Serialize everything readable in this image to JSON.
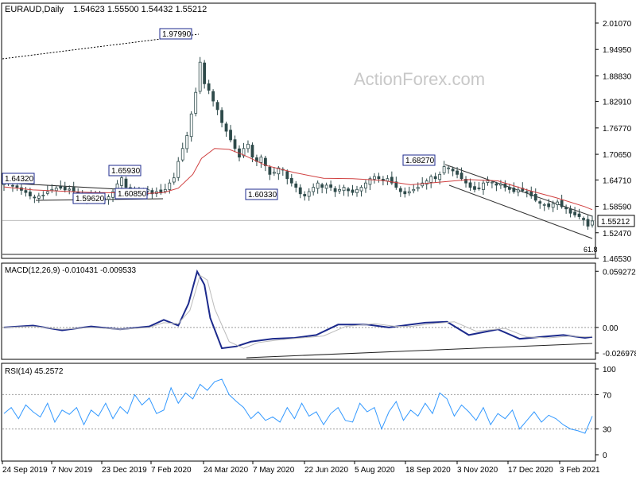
{
  "header": {
    "symbol": "EURAUD,Daily",
    "ohlc": "1.54623 1.55500 1.54432 1.55212"
  },
  "watermark": "ActionForex.com",
  "colors": {
    "candles": "#2e4a4a",
    "sma": "#d04040",
    "macd_line": "#1c2a8c",
    "signal_line": "#bbbbbb",
    "rsi_line": "#3399ff",
    "trendline": "#222222",
    "channel": "#333333",
    "label_border": "#1c2a8c",
    "current_price_box": "#ffffff"
  },
  "chart_data": [
    {
      "type": "candlestick",
      "title": "EURAUD,Daily",
      "subtitle": "1.54623 1.55500 1.54432 1.55212",
      "ylim": [
        1.4653,
        2.0601
      ],
      "y_ticks": [
        "2.01070",
        "1.94950",
        "1.88830",
        "1.82910",
        "1.76770",
        "1.70650",
        "1.64710",
        "1.58590",
        "1.52470",
        "1.46530"
      ],
      "x_ticks": [
        "24 Sep 2019",
        "7 Nov 2019",
        "23 Dec 2019",
        "7 Feb 2020",
        "24 Mar 2020",
        "7 May 2020",
        "22 Jun 2020",
        "5 Aug 2020",
        "18 Sep 2020",
        "3 Nov 2020",
        "17 Dec 2020",
        "3 Feb 2021"
      ],
      "current_price": "1.55212",
      "price_labels": [
        "1.97990",
        "1.65930",
        "1.60850",
        "1.59620",
        "1.60330",
        "1.68270",
        "1.64320"
      ],
      "fib_label": "61.8",
      "series": [
        {
          "name": "close",
          "x": [
            0,
            3,
            6,
            9,
            12,
            15,
            18,
            21,
            24,
            27,
            30,
            33,
            36,
            39,
            42,
            45,
            48,
            51,
            54,
            57,
            60,
            63,
            66,
            69,
            72,
            75,
            78,
            81,
            84,
            87,
            90,
            93,
            96,
            99,
            102,
            105,
            108,
            111,
            114,
            117,
            120,
            123,
            126,
            129,
            132,
            135,
            138,
            141,
            144,
            147,
            150,
            153,
            156,
            159,
            162,
            165,
            168,
            171,
            174,
            177,
            180,
            183,
            186,
            189,
            192,
            195,
            198,
            201,
            204,
            207,
            210,
            213,
            216,
            219,
            222,
            225,
            228,
            231,
            234,
            237,
            240,
            243,
            246,
            249,
            252,
            255,
            258,
            261,
            264,
            267,
            270,
            273,
            276,
            279,
            282,
            285,
            288,
            291,
            294,
            297,
            300,
            303,
            306,
            309,
            312,
            315,
            318,
            321,
            324,
            327,
            330,
            333,
            336,
            339,
            342,
            345,
            348,
            351,
            354,
            357,
            360,
            363,
            366,
            369,
            372,
            375,
            378,
            381,
            384,
            387,
            390,
            393,
            396,
            399,
            402,
            405
          ],
          "y": [
            1.64,
            1.638,
            1.633,
            1.63,
            1.623,
            1.618,
            1.61,
            1.606,
            1.61,
            1.612,
            1.62,
            1.625,
            1.628,
            1.628,
            1.624,
            1.626,
            1.62,
            1.612,
            1.603,
            1.604,
            1.612,
            1.61,
            1.601,
            1.605,
            1.608,
            1.62,
            1.638,
            1.652,
            1.63,
            1.612,
            1.618,
            1.62,
            1.622,
            1.625,
            1.615,
            1.62,
            1.617,
            1.625,
            1.64,
            1.652,
            1.69,
            1.72,
            1.75,
            1.8,
            1.85,
            1.92,
            1.87,
            1.855,
            1.83,
            1.81,
            1.78,
            1.76,
            1.74,
            1.72,
            1.7,
            1.72,
            1.73,
            1.7,
            1.69,
            1.7,
            1.68,
            1.66,
            1.665,
            1.675,
            1.67,
            1.65,
            1.64,
            1.63,
            1.615,
            1.61,
            1.62,
            1.63,
            1.64,
            1.63,
            1.635,
            1.63,
            1.62,
            1.625,
            1.63,
            1.622,
            1.618,
            1.625,
            1.63,
            1.64,
            1.65,
            1.655,
            1.65,
            1.645,
            1.65,
            1.64,
            1.63,
            1.62,
            1.615,
            1.62,
            1.625,
            1.63,
            1.64,
            1.645,
            1.655,
            1.65,
            1.66,
            1.678,
            1.675,
            1.668,
            1.66,
            1.65,
            1.64,
            1.63,
            1.625,
            1.627,
            1.64,
            1.645,
            1.642,
            1.635,
            1.638,
            1.63,
            1.625,
            1.62,
            1.624,
            1.622,
            1.618,
            1.61,
            1.6,
            1.593,
            1.59,
            1.585,
            1.592,
            1.596,
            1.585,
            1.58,
            1.57,
            1.566,
            1.562,
            1.555,
            1.54,
            1.552
          ]
        },
        {
          "name": "sma",
          "x": [
            0,
            20,
            40,
            60,
            80,
            100,
            110,
            120,
            130,
            136,
            145,
            155,
            165,
            180,
            200,
            220,
            240,
            260,
            280,
            300,
            320,
            340,
            360,
            380,
            400,
            405
          ],
          "y": [
            1.631,
            1.624,
            1.621,
            1.618,
            1.617,
            1.616,
            1.618,
            1.628,
            1.66,
            1.697,
            1.72,
            1.718,
            1.705,
            1.681,
            1.664,
            1.651,
            1.65,
            1.646,
            1.636,
            1.642,
            1.648,
            1.645,
            1.624,
            1.606,
            1.585,
            1.578
          ]
        }
      ]
    },
    {
      "type": "line",
      "title": "MACD(12,26,9) -0.010431 -0.009533",
      "y_ticks": [
        "0.059272",
        "0.00",
        "-0.026978"
      ],
      "ylim": [
        -0.032,
        0.062
      ],
      "series": [
        {
          "name": "macd",
          "x": [
            0,
            20,
            40,
            60,
            80,
            100,
            110,
            120,
            127,
            133,
            138,
            142,
            150,
            160,
            170,
            185,
            200,
            215,
            230,
            250,
            265,
            275,
            290,
            305,
            320,
            340,
            355,
            370,
            385,
            400,
            405
          ],
          "y": [
            0.0,
            0.002,
            -0.003,
            0.001,
            -0.002,
            0.001,
            0.008,
            0.002,
            0.025,
            0.059,
            0.045,
            0.01,
            -0.022,
            -0.02,
            -0.015,
            -0.012,
            -0.011,
            -0.008,
            0.003,
            0.003,
            0.0,
            0.002,
            0.005,
            0.006,
            -0.008,
            -0.002,
            -0.012,
            -0.01,
            -0.008,
            -0.011,
            -0.01
          ]
        },
        {
          "name": "signal",
          "x": [
            0,
            20,
            40,
            60,
            80,
            100,
            110,
            120,
            128,
            135,
            140,
            145,
            155,
            165,
            175,
            190,
            205,
            220,
            235,
            255,
            270,
            280,
            295,
            310,
            325,
            345,
            360,
            375,
            390,
            400,
            405
          ],
          "y": [
            0.0,
            0.001,
            -0.002,
            0.0,
            -0.002,
            0.0,
            0.005,
            0.004,
            0.018,
            0.055,
            0.05,
            0.02,
            -0.015,
            -0.022,
            -0.016,
            -0.013,
            -0.011,
            -0.009,
            0.001,
            0.004,
            0.001,
            0.001,
            0.004,
            0.006,
            -0.004,
            -0.001,
            -0.01,
            -0.011,
            -0.009,
            -0.01,
            -0.0095
          ]
        }
      ]
    },
    {
      "type": "line",
      "title": "RSI(14) 45.2572",
      "y_ticks": [
        "100",
        "70",
        "30",
        "0"
      ],
      "ylim": [
        0,
        100
      ],
      "series": [
        {
          "name": "rsi",
          "x": [
            0,
            5,
            10,
            15,
            20,
            25,
            30,
            35,
            40,
            45,
            50,
            55,
            60,
            65,
            70,
            75,
            80,
            85,
            90,
            95,
            100,
            105,
            110,
            115,
            120,
            125,
            130,
            135,
            140,
            145,
            150,
            155,
            160,
            165,
            170,
            175,
            180,
            185,
            190,
            195,
            200,
            205,
            210,
            215,
            220,
            225,
            230,
            235,
            240,
            245,
            250,
            255,
            260,
            265,
            270,
            275,
            280,
            285,
            290,
            295,
            300,
            305,
            310,
            315,
            320,
            325,
            330,
            335,
            340,
            345,
            350,
            355,
            360,
            365,
            370,
            375,
            380,
            385,
            390,
            395,
            400,
            405
          ],
          "y": [
            48,
            55,
            42,
            58,
            50,
            44,
            60,
            38,
            52,
            47,
            55,
            35,
            52,
            45,
            60,
            42,
            56,
            48,
            70,
            58,
            66,
            48,
            52,
            78,
            60,
            72,
            65,
            82,
            75,
            85,
            88,
            70,
            62,
            55,
            42,
            50,
            40,
            44,
            38,
            55,
            42,
            60,
            45,
            50,
            35,
            48,
            55,
            40,
            38,
            60,
            50,
            55,
            30,
            50,
            62,
            40,
            52,
            45,
            60,
            48,
            72,
            65,
            45,
            58,
            50,
            40,
            55,
            35,
            48,
            42,
            52,
            30,
            40,
            50,
            38,
            46,
            42,
            35,
            30,
            28,
            25,
            45
          ]
        }
      ]
    }
  ]
}
